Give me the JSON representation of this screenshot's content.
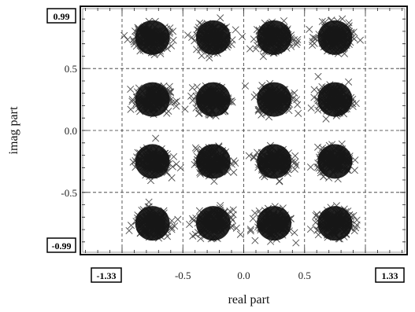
{
  "chart_data": {
    "type": "scatter",
    "title": "",
    "xlabel": "real part",
    "ylabel": "imag part",
    "xlim": [
      -1.33,
      1.33
    ],
    "ylim": [
      -0.99,
      0.99
    ],
    "grid": true,
    "x_range_labels": [
      "-1.33",
      "1.33"
    ],
    "y_range_labels": [
      "0.99",
      "-0.99"
    ],
    "x_tick_values": [
      -1.0,
      -0.5,
      0.0,
      0.5,
      1.0
    ],
    "x_tick_labels": [
      "",
      "-0.5",
      "0.0",
      "0.5",
      ""
    ],
    "y_tick_values": [
      0.5,
      0.0,
      -0.5
    ],
    "y_tick_labels": [
      "0.5",
      "0.0",
      "-0.5"
    ],
    "marker": "x",
    "point_color": "#111111",
    "clusters": [
      {
        "x": -0.75,
        "y": 0.75
      },
      {
        "x": -0.25,
        "y": 0.75
      },
      {
        "x": 0.25,
        "y": 0.75
      },
      {
        "x": 0.75,
        "y": 0.75
      },
      {
        "x": -0.75,
        "y": 0.25
      },
      {
        "x": -0.25,
        "y": 0.25
      },
      {
        "x": 0.25,
        "y": 0.25
      },
      {
        "x": 0.75,
        "y": 0.25
      },
      {
        "x": -0.75,
        "y": -0.25
      },
      {
        "x": -0.25,
        "y": -0.25
      },
      {
        "x": 0.25,
        "y": -0.25
      },
      {
        "x": 0.75,
        "y": -0.25
      },
      {
        "x": -0.75,
        "y": -0.75
      },
      {
        "x": -0.25,
        "y": -0.75
      },
      {
        "x": 0.25,
        "y": -0.75
      },
      {
        "x": 0.75,
        "y": -0.75
      }
    ],
    "cluster_spread_x": 0.07,
    "cluster_spread_y": 0.052
  }
}
